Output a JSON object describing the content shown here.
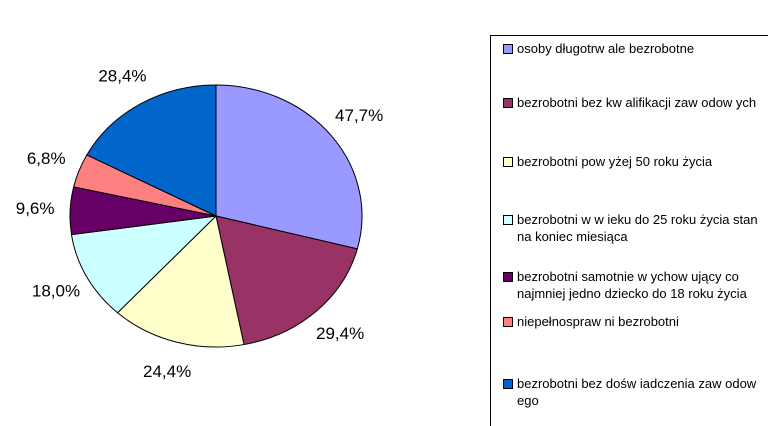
{
  "chart_data": {
    "type": "pie",
    "categories": [
      "osoby długotrw ale bezrobotne",
      "bezrobotni bez kw alifikacji zaw odow ych",
      "bezrobotni pow yżej 50 roku życia",
      "bezrobotni w  w ieku do 25 roku życia stan na koniec miesiąca",
      "bezrobotni samotnie w ychow ujący co najmniej jedno dziecko do 18 roku życia",
      "niepełnospraw ni bezrobotni",
      "bezrobotni bez dośw iadczenia zaw odow ego"
    ],
    "values": [
      47.7,
      29.4,
      24.4,
      18.0,
      9.6,
      6.8,
      28.4
    ],
    "value_labels": [
      "47,7%",
      "29,4%",
      "24,4%",
      "18,0%",
      "9,6%",
      "6,8%",
      "28,4%"
    ],
    "colors": [
      "#9999ff",
      "#993366",
      "#ffffcc",
      "#ccffff",
      "#660066",
      "#ff8080",
      "#0066cc"
    ],
    "legend": "right"
  }
}
